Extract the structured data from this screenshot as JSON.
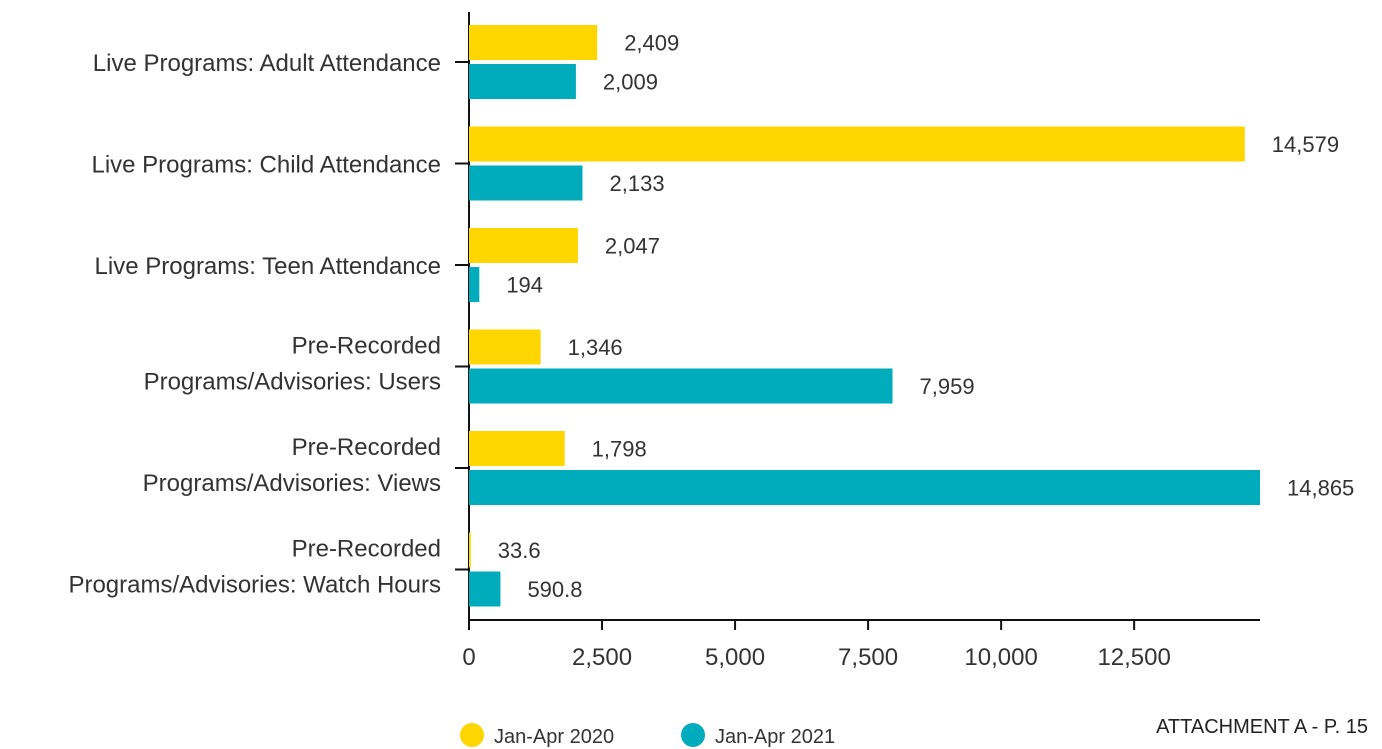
{
  "chart_data": {
    "type": "bar",
    "orientation": "horizontal",
    "categories": [
      [
        "Live Programs: Adult Attendance"
      ],
      [
        "Live Programs: Child Attendance"
      ],
      [
        "Live Programs: Teen Attendance"
      ],
      [
        "Pre-Recorded",
        "Programs/Advisories: Users"
      ],
      [
        "Pre-Recorded",
        "Programs/Advisories: Views"
      ],
      [
        "Pre-Recorded",
        "Programs/Advisories: Watch Hours"
      ]
    ],
    "series": [
      {
        "name": "Jan-Apr 2020",
        "color": "#FFD600",
        "values": [
          2409,
          14579,
          2047,
          1346,
          1798,
          33.6
        ],
        "labels": [
          "2,409",
          "14,579",
          "2,047",
          "1,346",
          "1,798",
          "33.6"
        ]
      },
      {
        "name": "Jan-Apr 2021",
        "color": "#00ACBB",
        "values": [
          2009,
          2133,
          194,
          7959,
          14865,
          590.8
        ],
        "labels": [
          "2,009",
          "2,133",
          "194",
          "7,959",
          "14,865",
          "590.8"
        ]
      }
    ],
    "xlim": [
      0,
      14865
    ],
    "xticks": [
      0,
      2500,
      5000,
      7500,
      10000,
      12500
    ],
    "xtick_labels": [
      "0",
      "2,500",
      "5,000",
      "7,500",
      "10,000",
      "12,500"
    ],
    "grid": false,
    "legend_position": "bottom-center"
  },
  "footer": {
    "attachment_label": "ATTACHMENT A - P. 15"
  }
}
